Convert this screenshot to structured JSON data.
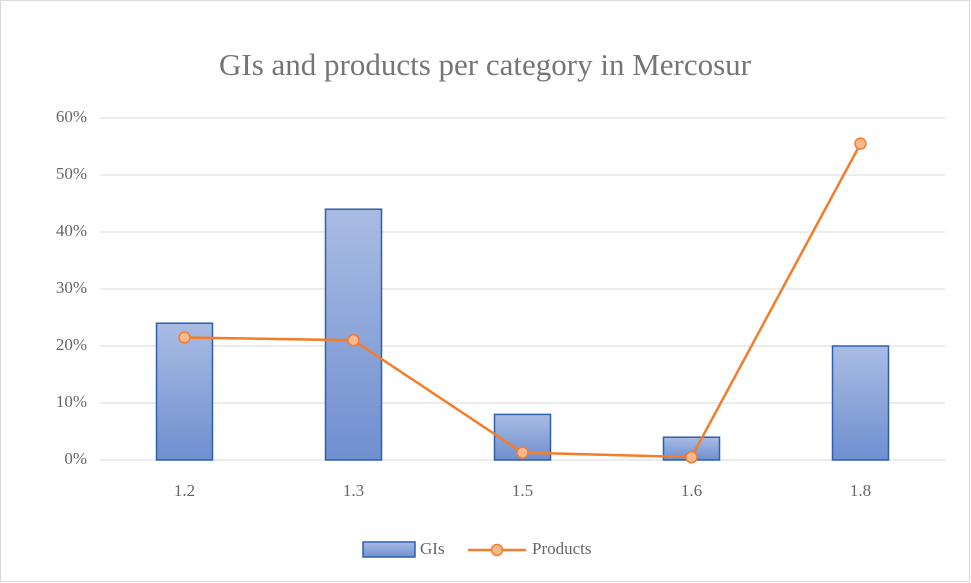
{
  "chart_data": {
    "type": "bar",
    "title": "GIs and products per category in Mercosur",
    "categories": [
      "1.2",
      "1.3",
      "1.5",
      "1.6",
      "1.8"
    ],
    "series": [
      {
        "name": "GIs",
        "type": "bar",
        "color": "#4472c4",
        "values": [
          24,
          44,
          8,
          4,
          20
        ]
      },
      {
        "name": "Products",
        "type": "line",
        "color": "#f47c2a",
        "values": [
          21.5,
          21,
          1.3,
          0.5,
          55.5
        ]
      }
    ],
    "ylim": [
      0,
      60
    ],
    "yticks": [
      {
        "value": 0,
        "label": "0%"
      },
      {
        "value": 10,
        "label": "10%"
      },
      {
        "value": 20,
        "label": "20%"
      },
      {
        "value": 30,
        "label": "30%"
      },
      {
        "value": 40,
        "label": "40%"
      },
      {
        "value": 50,
        "label": "50%"
      },
      {
        "value": 60,
        "label": "60%"
      }
    ],
    "grid": true,
    "legend": "bottom"
  }
}
